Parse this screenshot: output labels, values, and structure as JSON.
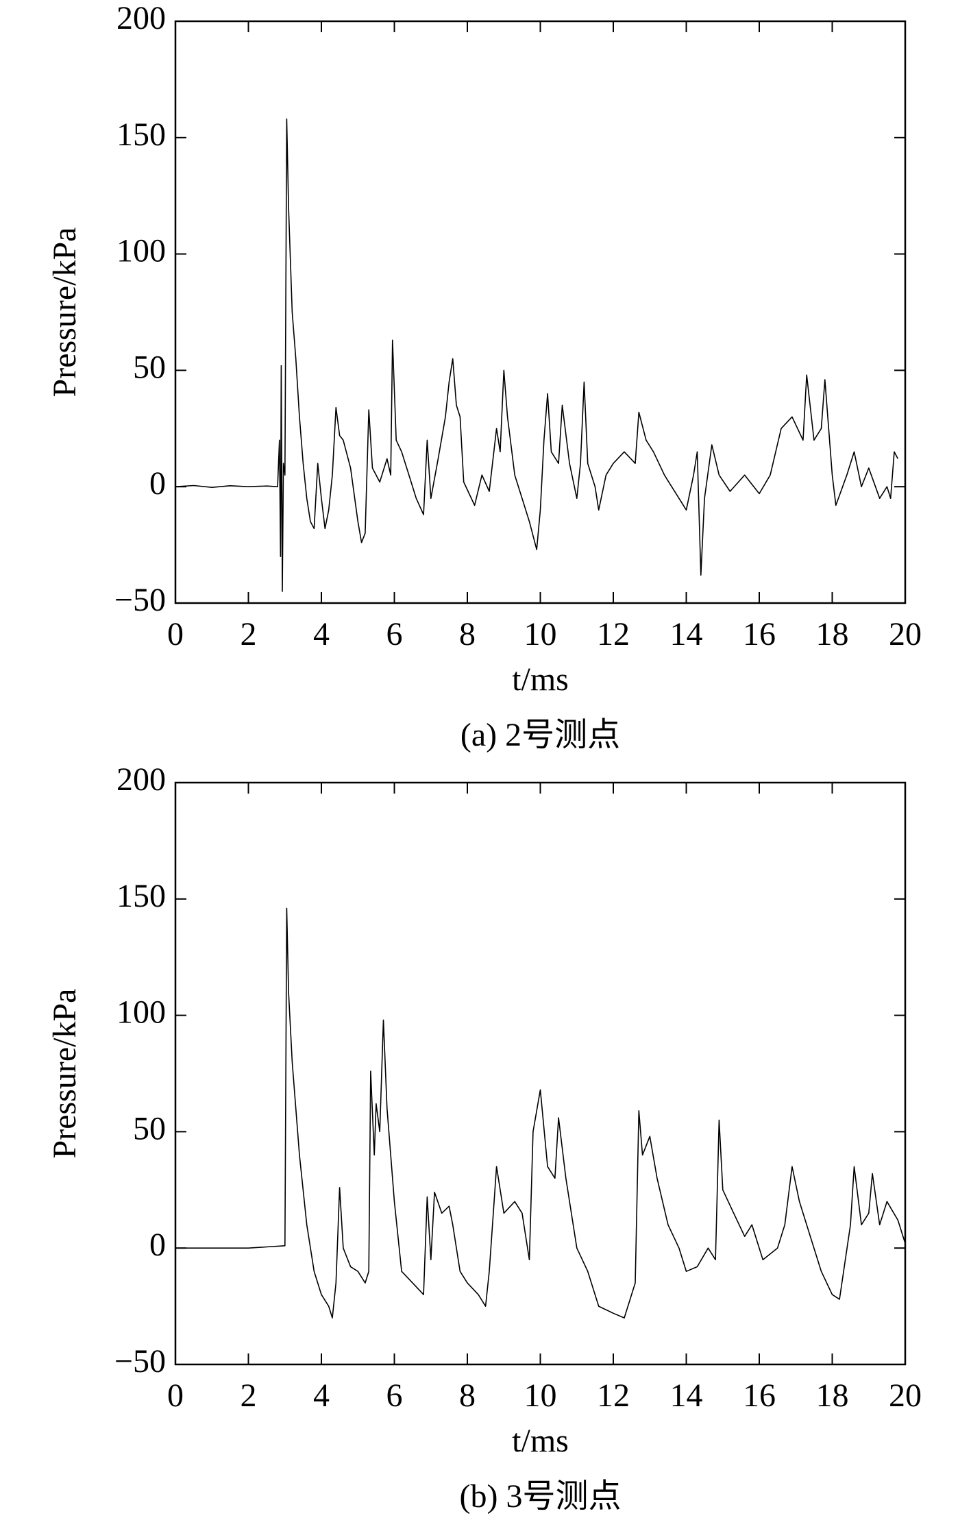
{
  "chart_data": [
    {
      "type": "line",
      "caption": "(a) 2号测点",
      "x_label": "t/ms",
      "y_label": "Pressure/kPa",
      "color": "#000000",
      "xlim": [
        0,
        20
      ],
      "xticks": [
        0,
        2,
        4,
        6,
        8,
        10,
        12,
        14,
        16,
        18,
        20
      ],
      "ylim": [
        -50,
        200
      ],
      "yticks": [
        {
          "value": -50,
          "label": "−50"
        },
        0,
        50,
        100,
        150,
        200
      ],
      "x": [
        0,
        0.5,
        1,
        1.5,
        2,
        2.5,
        2.8,
        2.85,
        2.88,
        2.9,
        2.93,
        2.96,
        3.0,
        3.05,
        3.1,
        3.2,
        3.3,
        3.4,
        3.5,
        3.6,
        3.7,
        3.8,
        3.9,
        4.0,
        4.1,
        4.2,
        4.3,
        4.4,
        4.5,
        4.6,
        4.8,
        5.0,
        5.1,
        5.2,
        5.3,
        5.4,
        5.6,
        5.8,
        5.9,
        5.95,
        6.05,
        6.2,
        6.4,
        6.6,
        6.8,
        6.9,
        7.0,
        7.2,
        7.4,
        7.5,
        7.6,
        7.7,
        7.8,
        7.9,
        8.2,
        8.4,
        8.6,
        8.8,
        8.9,
        9.0,
        9.1,
        9.3,
        9.5,
        9.7,
        9.9,
        10.0,
        10.1,
        10.2,
        10.3,
        10.5,
        10.6,
        10.8,
        11.0,
        11.1,
        11.2,
        11.3,
        11.5,
        11.6,
        11.8,
        12.0,
        12.3,
        12.6,
        12.7,
        12.9,
        13.1,
        13.4,
        13.6,
        13.8,
        14.0,
        14.2,
        14.3,
        14.4,
        14.5,
        14.7,
        14.9,
        15.2,
        15.6,
        16.0,
        16.3,
        16.6,
        16.9,
        17.2,
        17.3,
        17.5,
        17.7,
        17.8,
        18.0,
        18.1,
        18.4,
        18.6,
        18.8,
        19.0,
        19.3,
        19.5,
        19.6,
        19.7,
        19.8
      ],
      "values": [
        0,
        0.5,
        -0.3,
        0.4,
        0,
        0.3,
        0,
        20,
        -30,
        52,
        -45,
        10,
        5,
        158,
        120,
        75,
        55,
        30,
        10,
        -5,
        -15,
        -18,
        10,
        -5,
        -18,
        -10,
        5,
        34,
        22,
        20,
        8,
        -15,
        -24,
        -20,
        33,
        8,
        2,
        12,
        5,
        63,
        20,
        15,
        5,
        -5,
        -12,
        20,
        -5,
        12,
        30,
        45,
        55,
        35,
        30,
        2,
        -8,
        5,
        -2,
        25,
        15,
        50,
        30,
        5,
        -5,
        -15,
        -27,
        -10,
        20,
        40,
        15,
        10,
        35,
        10,
        -5,
        10,
        45,
        10,
        0,
        -10,
        5,
        10,
        15,
        10,
        32,
        20,
        15,
        5,
        0,
        -5,
        -10,
        5,
        15,
        -38,
        -5,
        18,
        5,
        -2,
        5,
        -3,
        5,
        25,
        30,
        20,
        48,
        20,
        25,
        46,
        5,
        -8,
        5,
        15,
        0,
        8,
        -5,
        0,
        -5,
        15,
        12
      ]
    },
    {
      "type": "line",
      "caption": "(b) 3号测点",
      "x_label": "t/ms",
      "y_label": "Pressure/kPa",
      "color": "#000000",
      "xlim": [
        0,
        20
      ],
      "xticks": [
        0,
        2,
        4,
        6,
        8,
        10,
        12,
        14,
        16,
        18,
        20
      ],
      "ylim": [
        -50,
        200
      ],
      "yticks": [
        {
          "value": -50,
          "label": "−50"
        },
        0,
        50,
        100,
        150,
        200
      ],
      "x": [
        0,
        2,
        2.5,
        3.0,
        3.05,
        3.1,
        3.2,
        3.4,
        3.6,
        3.8,
        4.0,
        4.2,
        4.3,
        4.4,
        4.5,
        4.6,
        4.8,
        5.0,
        5.2,
        5.3,
        5.35,
        5.45,
        5.5,
        5.6,
        5.7,
        5.8,
        6.0,
        6.2,
        6.5,
        6.8,
        6.9,
        7.0,
        7.1,
        7.3,
        7.5,
        7.6,
        7.8,
        8.0,
        8.3,
        8.5,
        8.6,
        8.8,
        9.0,
        9.3,
        9.5,
        9.7,
        9.8,
        10.0,
        10.2,
        10.4,
        10.5,
        10.7,
        11.0,
        11.3,
        11.6,
        12.0,
        12.3,
        12.6,
        12.7,
        12.8,
        13.0,
        13.2,
        13.5,
        13.8,
        14.0,
        14.3,
        14.6,
        14.8,
        14.9,
        15.0,
        15.3,
        15.6,
        15.8,
        16.1,
        16.5,
        16.7,
        16.9,
        17.1,
        17.4,
        17.7,
        18.0,
        18.2,
        18.5,
        18.6,
        18.8,
        19.0,
        19.1,
        19.3,
        19.5,
        19.8,
        20.0
      ],
      "values": [
        0,
        0,
        0.5,
        1,
        146,
        110,
        80,
        40,
        10,
        -10,
        -20,
        -25,
        -30,
        -15,
        26,
        0,
        -8,
        -10,
        -15,
        -10,
        76,
        40,
        62,
        50,
        98,
        60,
        20,
        -10,
        -15,
        -20,
        22,
        -5,
        24,
        15,
        18,
        10,
        -10,
        -15,
        -20,
        -25,
        -10,
        35,
        15,
        20,
        15,
        -5,
        50,
        68,
        35,
        30,
        56,
        30,
        0,
        -10,
        -25,
        -28,
        -30,
        -15,
        59,
        40,
        48,
        30,
        10,
        0,
        -10,
        -8,
        0,
        -5,
        55,
        25,
        15,
        5,
        10,
        -5,
        0,
        10,
        35,
        20,
        5,
        -10,
        -20,
        -22,
        10,
        35,
        10,
        15,
        32,
        10,
        20,
        12,
        2
      ]
    }
  ]
}
